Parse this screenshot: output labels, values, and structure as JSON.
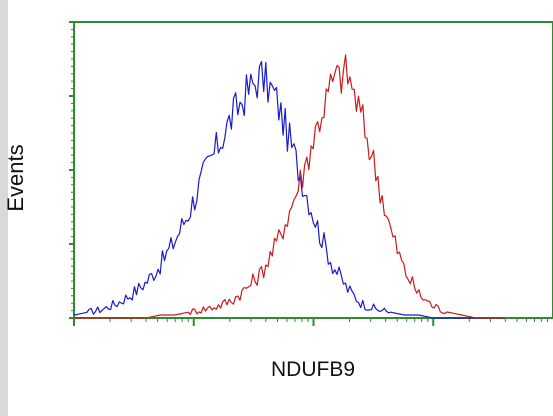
{
  "chart_data": {
    "type": "line",
    "title": "",
    "xlabel": "NDUFB9",
    "ylabel": "Events",
    "x_scale": "log",
    "xlim": [
      0,
      1
    ],
    "ylim": [
      0,
      1
    ],
    "grid": false,
    "legend": "none",
    "frame_color": "#2e8b2e",
    "series": [
      {
        "color": "#1a1acc",
        "x": [
          0.0,
          0.03,
          0.06,
          0.09,
          0.12,
          0.15,
          0.18,
          0.21,
          0.24,
          0.27,
          0.3,
          0.33,
          0.36,
          0.39,
          0.42,
          0.45,
          0.48,
          0.51,
          0.54,
          0.57,
          0.6,
          0.63,
          0.66,
          0.69,
          0.72,
          0.75,
          0.78,
          0.81,
          0.84,
          0.87,
          0.9
        ],
        "values": [
          0.01,
          0.02,
          0.03,
          0.05,
          0.08,
          0.12,
          0.18,
          0.26,
          0.36,
          0.48,
          0.58,
          0.68,
          0.76,
          0.82,
          0.75,
          0.6,
          0.45,
          0.3,
          0.18,
          0.1,
          0.05,
          0.03,
          0.02,
          0.01,
          0.01,
          0.0,
          0.0,
          0.0,
          0.0,
          0.0,
          0.0
        ]
      },
      {
        "color": "#cc1a1a",
        "x": [
          0.0,
          0.03,
          0.06,
          0.09,
          0.12,
          0.15,
          0.18,
          0.21,
          0.24,
          0.27,
          0.3,
          0.33,
          0.36,
          0.39,
          0.42,
          0.45,
          0.48,
          0.51,
          0.54,
          0.57,
          0.6,
          0.63,
          0.66,
          0.69,
          0.72,
          0.75,
          0.78,
          0.81,
          0.84,
          0.87,
          0.9
        ],
        "values": [
          0.0,
          0.0,
          0.0,
          0.0,
          0.0,
          0.0,
          0.01,
          0.01,
          0.02,
          0.03,
          0.04,
          0.06,
          0.1,
          0.15,
          0.24,
          0.36,
          0.5,
          0.66,
          0.8,
          0.83,
          0.68,
          0.5,
          0.3,
          0.16,
          0.08,
          0.04,
          0.02,
          0.01,
          0.0,
          0.0,
          0.0
        ]
      }
    ]
  }
}
